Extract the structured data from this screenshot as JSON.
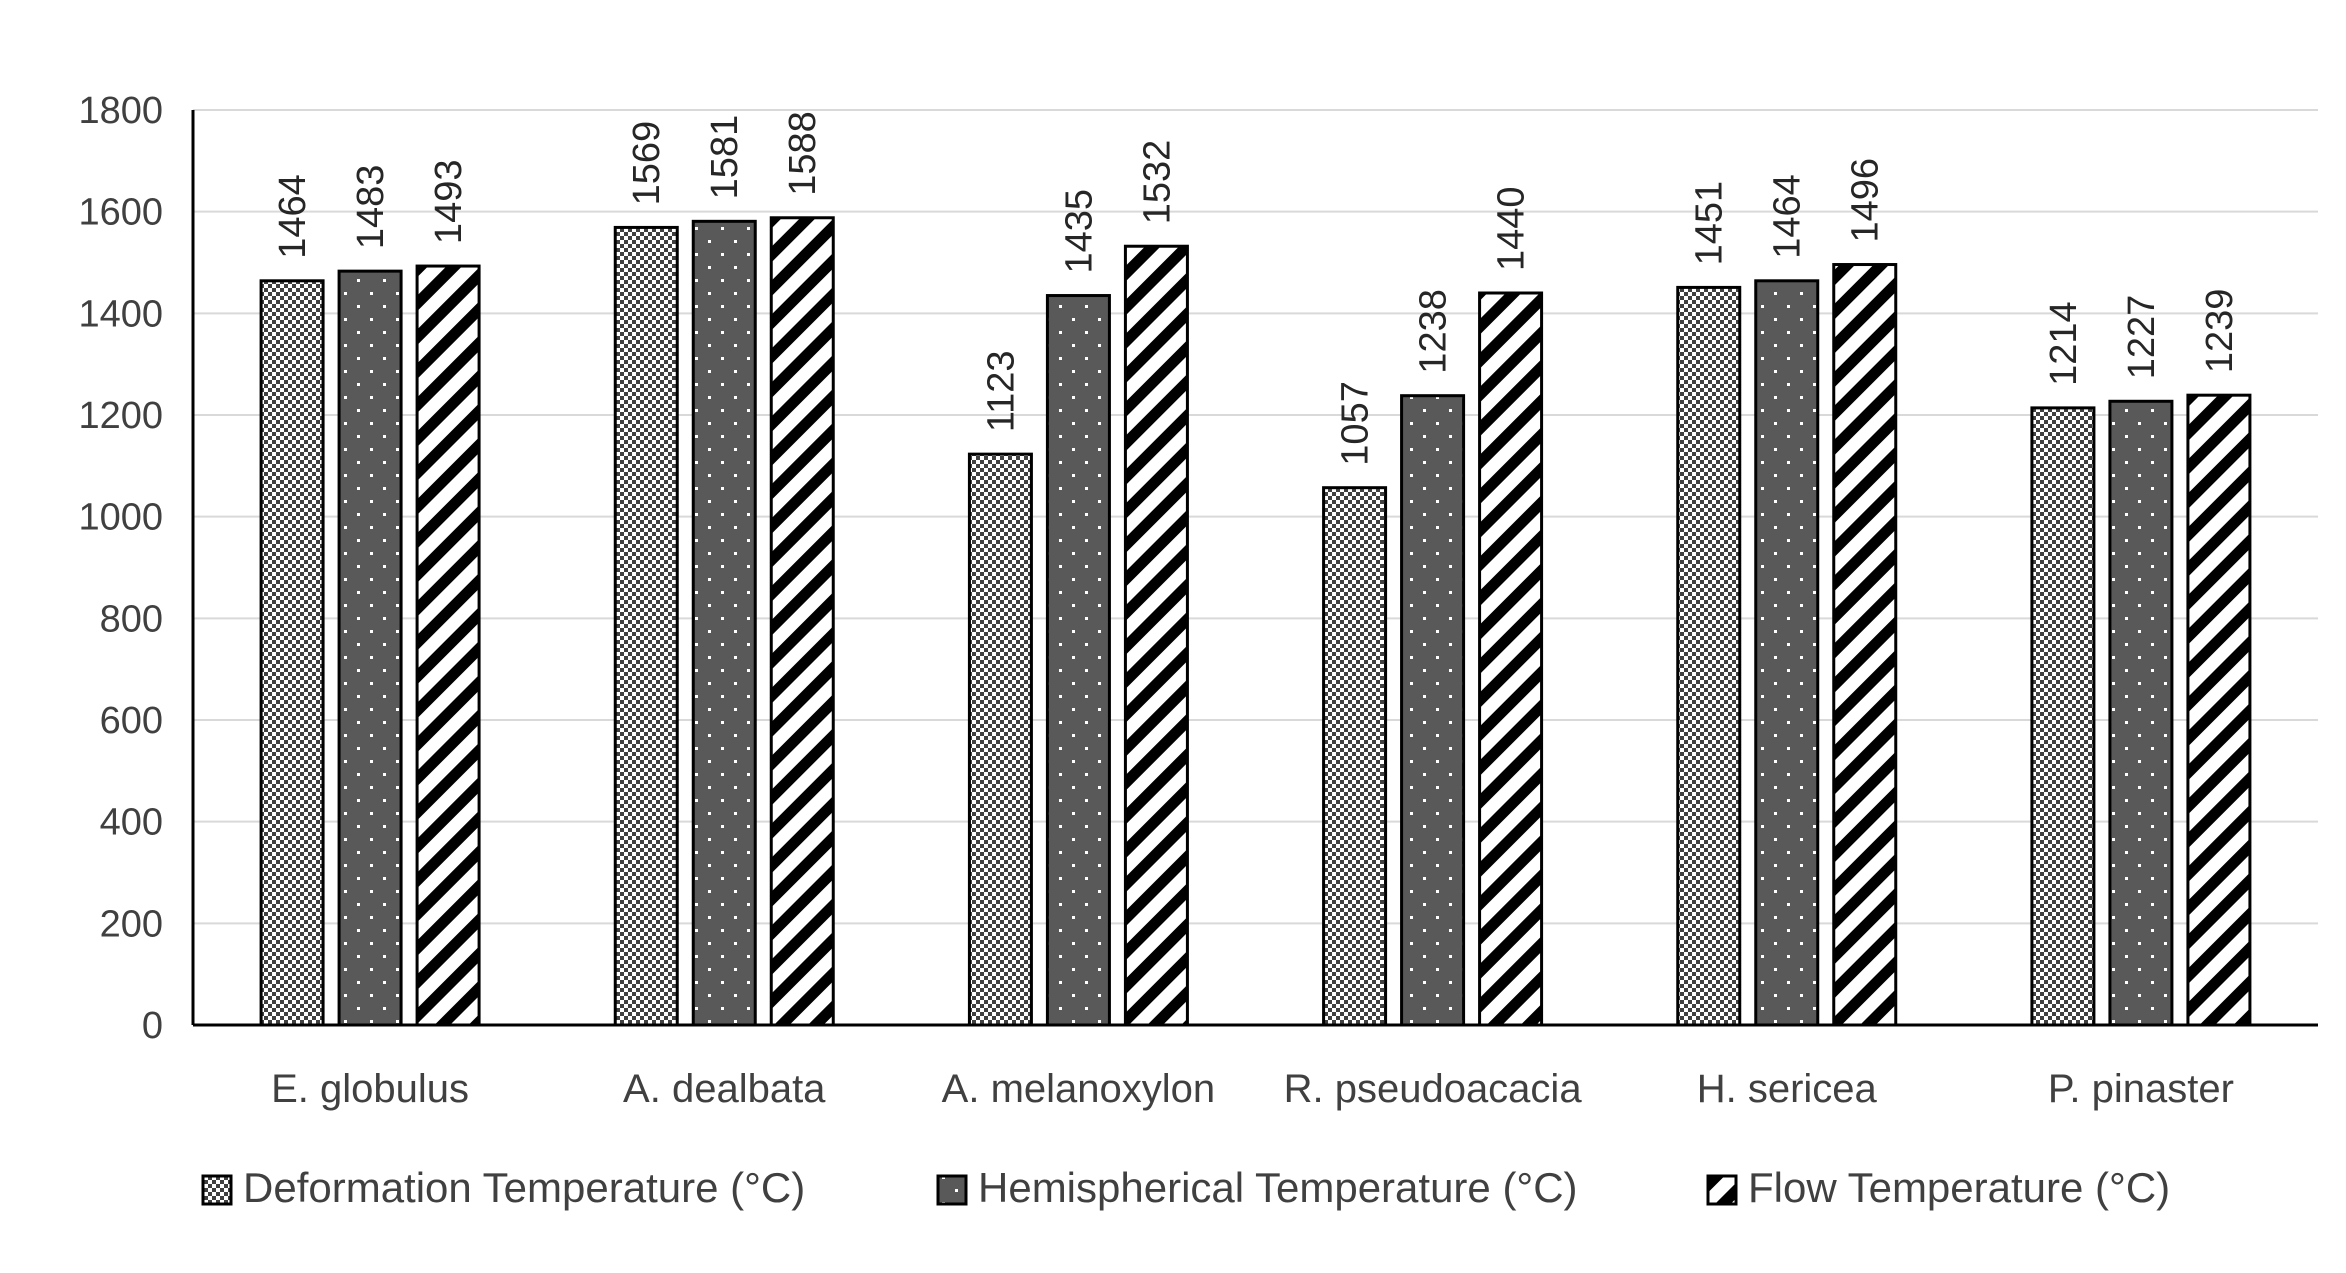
{
  "chart_data": {
    "type": "bar",
    "title": "",
    "xlabel": "",
    "ylabel": "",
    "categories": [
      "E. globulus",
      "A. dealbata",
      "A. melanoxylon",
      "R. pseudoacacia",
      "H. sericea",
      "P. pinaster"
    ],
    "series": [
      {
        "name": "Deformation Temperature (°C)",
        "pattern": "crosshatch",
        "values": [
          1464,
          1569,
          1123,
          1057,
          1451,
          1214
        ]
      },
      {
        "name": "Hemispherical Temperature (°C)",
        "pattern": "dark-dotted",
        "values": [
          1483,
          1581,
          1435,
          1238,
          1464,
          1227
        ]
      },
      {
        "name": "Flow Temperature (°C)",
        "pattern": "diagonal-stripes",
        "values": [
          1493,
          1588,
          1532,
          1440,
          1496,
          1239
        ]
      }
    ],
    "ylim": [
      0,
      1800
    ],
    "yticks": [
      0,
      200,
      400,
      600,
      800,
      1000,
      1200,
      1400,
      1600,
      1800
    ],
    "grid": true,
    "legend_position": "bottom",
    "colors": {
      "bar_dark": "#595959",
      "bar_light": "#ffffff",
      "outline": "#000000",
      "grid": "#d9d9d9",
      "text": "#404040"
    }
  }
}
